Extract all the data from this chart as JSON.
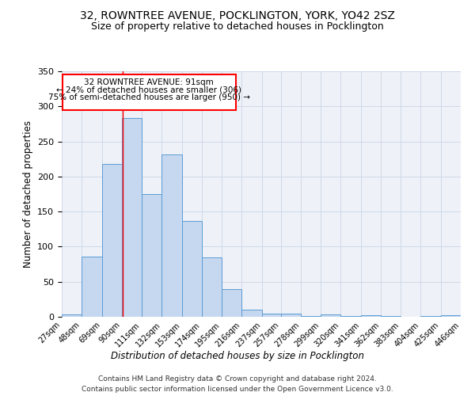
{
  "title1": "32, ROWNTREE AVENUE, POCKLINGTON, YORK, YO42 2SZ",
  "title2": "Size of property relative to detached houses in Pocklington",
  "xlabel": "Distribution of detached houses by size in Pocklington",
  "ylabel": "Number of detached properties",
  "footer1": "Contains HM Land Registry data © Crown copyright and database right 2024.",
  "footer2": "Contains public sector information licensed under the Open Government Licence v3.0.",
  "annotation_line1": "32 ROWNTREE AVENUE: 91sqm",
  "annotation_line2": "← 24% of detached houses are smaller (306)",
  "annotation_line3": "75% of semi-detached houses are larger (950) →",
  "bar_color": "#c5d8f0",
  "bar_edge_color": "#5b9bd5",
  "grid_color": "#d0d8e8",
  "bg_color": "#eef2f8",
  "red_line_x": 91,
  "bin_edges": [
    27,
    48,
    69,
    90,
    111,
    132,
    153,
    174,
    195,
    216,
    237,
    257,
    278,
    299,
    320,
    341,
    362,
    383,
    404,
    425,
    446
  ],
  "bar_heights": [
    3,
    86,
    218,
    283,
    175,
    232,
    137,
    85,
    40,
    10,
    4,
    5,
    1,
    3,
    1,
    2,
    1,
    0,
    1,
    2
  ],
  "ylim": [
    0,
    350
  ],
  "yticks": [
    0,
    50,
    100,
    150,
    200,
    250,
    300,
    350
  ],
  "title1_fontsize": 10,
  "title2_fontsize": 9,
  "xlabel_fontsize": 8.5,
  "ylabel_fontsize": 8.5
}
